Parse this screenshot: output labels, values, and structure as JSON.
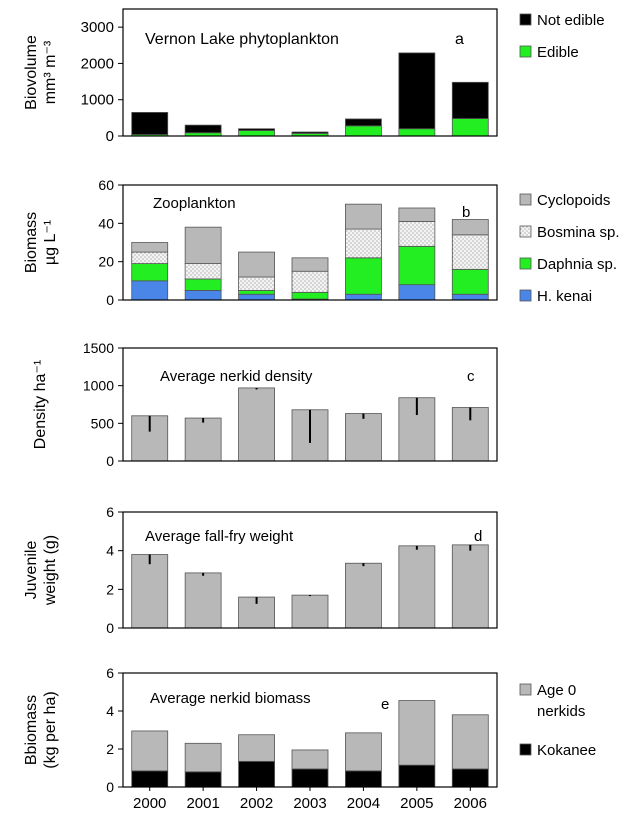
{
  "x_categories": [
    "2000",
    "2001",
    "2002",
    "2003",
    "2004",
    "2005",
    "2006"
  ],
  "chart_data": [
    {
      "type": "bar",
      "stacked": true,
      "panel": "a",
      "annotation": "Vernon Lake phytoplankton",
      "ylabel": [
        "Biovolume",
        "mm³ m⁻³"
      ],
      "ylim": [
        0,
        3500
      ],
      "yticks": [
        "0",
        "1000",
        "2000",
        "3000"
      ],
      "categories": [
        "2000",
        "2001",
        "2002",
        "2003",
        "2004",
        "2005",
        "2006"
      ],
      "series": [
        {
          "name": "Edible",
          "color": "#22ee22",
          "values": [
            40,
            90,
            150,
            70,
            280,
            200,
            480
          ]
        },
        {
          "name": "Not edible",
          "color": "#000000",
          "values": [
            610,
            210,
            50,
            40,
            190,
            2090,
            1000
          ]
        }
      ],
      "legend": "right"
    },
    {
      "type": "bar",
      "stacked": true,
      "panel": "b",
      "annotation": "Zooplankton",
      "ylabel": [
        "Biomass",
        "µg L⁻¹"
      ],
      "ylim": [
        0,
        60
      ],
      "yticks": [
        "0",
        "20",
        "40",
        "60"
      ],
      "categories": [
        "2000",
        "2001",
        "2002",
        "2003",
        "2004",
        "2005",
        "2006"
      ],
      "series": [
        {
          "name": "H. kenai",
          "color": "#4a86e8",
          "values": [
            10,
            5,
            3,
            0.5,
            3,
            8,
            3
          ]
        },
        {
          "name": "Daphnia sp.",
          "color": "#22ee22",
          "values": [
            9,
            6,
            2,
            3.5,
            19,
            20,
            13
          ]
        },
        {
          "name": "Bosmina sp.",
          "color": "#f2f2f2",
          "values": [
            6,
            8,
            7,
            11,
            15,
            13,
            18
          ]
        },
        {
          "name": "Cyclopoids",
          "color": "#b8b8b8",
          "values": [
            5,
            19,
            13,
            7,
            13,
            7,
            8
          ]
        }
      ],
      "legend": "right"
    },
    {
      "type": "bar",
      "panel": "c",
      "annotation": "Average nerkid density",
      "ylabel": [
        "Density ha⁻¹"
      ],
      "ylim": [
        0,
        1500
      ],
      "yticks": [
        "0",
        "500",
        "1000",
        "1500"
      ],
      "categories": [
        "2000",
        "2001",
        "2002",
        "2003",
        "2004",
        "2005",
        "2006"
      ],
      "values": [
        600,
        570,
        970,
        680,
        630,
        840,
        710
      ],
      "errors": [
        210,
        60,
        20,
        440,
        70,
        230,
        170
      ],
      "color": "#b8b8b8"
    },
    {
      "type": "bar",
      "panel": "d",
      "annotation": "Average fall-fry weight",
      "ylabel": [
        "Juvenile",
        "weight (g)"
      ],
      "ylim": [
        0,
        6
      ],
      "yticks": [
        "0",
        "2",
        "4",
        "6"
      ],
      "categories": [
        "2000",
        "2001",
        "2002",
        "2003",
        "2004",
        "2005",
        "2006"
      ],
      "values": [
        3.8,
        2.85,
        1.6,
        1.7,
        3.35,
        4.25,
        4.3
      ],
      "errors": [
        0.5,
        0.15,
        0.35,
        0.05,
        0.15,
        0.2,
        0.3
      ],
      "color": "#b8b8b8"
    },
    {
      "type": "bar",
      "stacked": true,
      "panel": "e",
      "annotation": "Average nerkid biomass",
      "ylabel": [
        "Bbiomass",
        "(kg per ha)"
      ],
      "ylim": [
        0,
        6
      ],
      "yticks": [
        "0",
        "2",
        "4",
        "6"
      ],
      "categories": [
        "2000",
        "2001",
        "2002",
        "2003",
        "2004",
        "2005",
        "2006"
      ],
      "series": [
        {
          "name": "Kokanee",
          "color": "#000000",
          "values": [
            0.85,
            0.8,
            1.35,
            0.95,
            0.85,
            1.15,
            0.95
          ]
        },
        {
          "name": "Age 0 nerkids",
          "color": "#b8b8b8",
          "values": [
            2.1,
            1.5,
            1.4,
            1.0,
            2.0,
            3.4,
            2.85
          ]
        }
      ],
      "legend": "right"
    }
  ]
}
